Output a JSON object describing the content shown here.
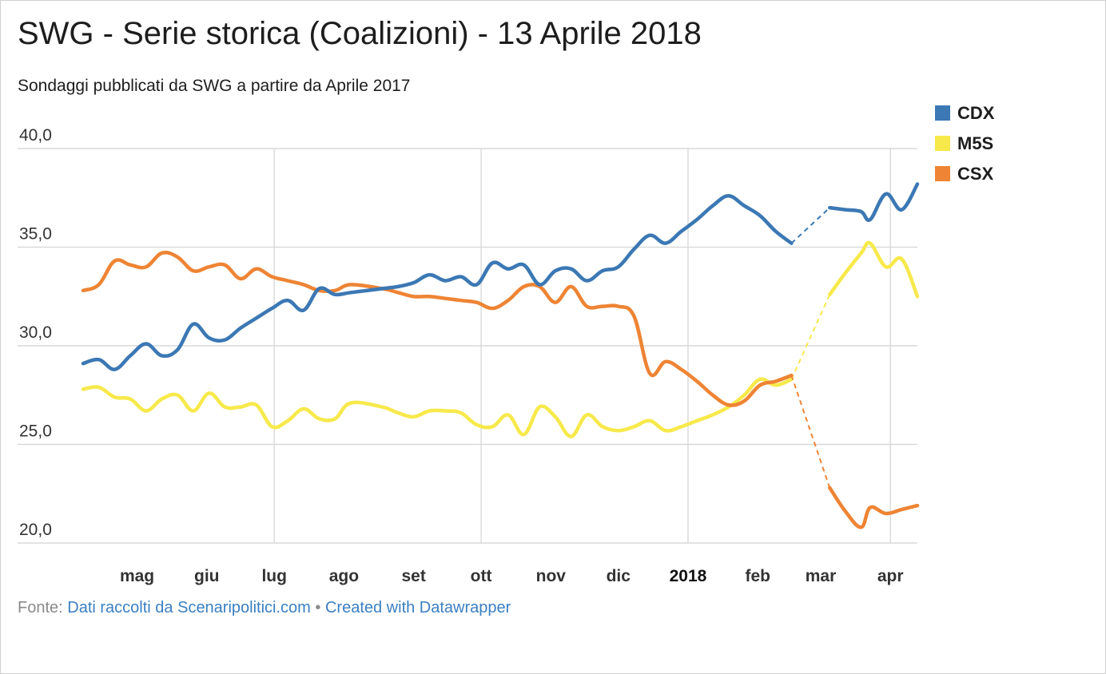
{
  "title": "SWG - Serie storica (Coalizioni) - 13 Aprile 2018",
  "subtitle": "Sondaggi pubblicati da SWG a partire da Aprile 2017",
  "footer": {
    "source_prefix": "Fonte:",
    "source_link": "Dati raccolti da Scenaripolitici.com",
    "separator": "•",
    "credit_link": "Created with Datawrapper"
  },
  "colors": {
    "CDX": "#3b78b4",
    "M5S": "#f7e94a",
    "CSX": "#ee8434",
    "grid": "#d9d9d9"
  },
  "chart_data": {
    "type": "line",
    "title": "SWG - Serie storica (Coalizioni) - 13 Aprile 2018",
    "subtitle": "Sondaggi pubblicati da SWG a partire da Aprile 2017",
    "x_start": "2017-04-07",
    "x_end": "2018-04-13",
    "ylim": [
      20,
      40
    ],
    "yticks": [
      20,
      25,
      30,
      35,
      40
    ],
    "ytick_labels": [
      "20,0",
      "25,0",
      "30,0",
      "35,0",
      "40,0"
    ],
    "xticks": [
      {
        "label": "mag",
        "date": "2017-05-01",
        "bold": false
      },
      {
        "label": "giu",
        "date": "2017-06-01",
        "bold": false
      },
      {
        "label": "lug",
        "date": "2017-07-01",
        "bold": false
      },
      {
        "label": "ago",
        "date": "2017-08-01",
        "bold": false
      },
      {
        "label": "set",
        "date": "2017-09-01",
        "bold": false
      },
      {
        "label": "ott",
        "date": "2017-10-01",
        "bold": false
      },
      {
        "label": "nov",
        "date": "2017-11-01",
        "bold": false
      },
      {
        "label": "dic",
        "date": "2017-12-01",
        "bold": false
      },
      {
        "label": "2018",
        "date": "2018-01-01",
        "bold": true
      },
      {
        "label": "feb",
        "date": "2018-02-01",
        "bold": false
      },
      {
        "label": "mar",
        "date": "2018-03-01",
        "bold": false
      },
      {
        "label": "apr",
        "date": "2018-04-01",
        "bold": false
      }
    ],
    "grid_x_dates": [
      "2017-07-01",
      "2017-10-01",
      "2018-01-01",
      "2018-04-01"
    ],
    "legend_position": "top-right",
    "gap": {
      "from": "2018-02-16",
      "to": "2018-03-05"
    },
    "series": [
      {
        "name": "CDX",
        "points": [
          [
            "2017-04-07",
            29.1
          ],
          [
            "2017-04-14",
            29.3
          ],
          [
            "2017-04-21",
            28.8
          ],
          [
            "2017-04-28",
            29.5
          ],
          [
            "2017-05-05",
            30.1
          ],
          [
            "2017-05-12",
            29.5
          ],
          [
            "2017-05-19",
            29.8
          ],
          [
            "2017-05-26",
            31.1
          ],
          [
            "2017-06-02",
            30.4
          ],
          [
            "2017-06-09",
            30.3
          ],
          [
            "2017-06-16",
            30.9
          ],
          [
            "2017-06-23",
            31.4
          ],
          [
            "2017-06-30",
            31.9
          ],
          [
            "2017-07-07",
            32.3
          ],
          [
            "2017-07-14",
            31.8
          ],
          [
            "2017-07-21",
            32.9
          ],
          [
            "2017-07-28",
            32.6
          ],
          [
            "2017-08-04",
            32.7
          ],
          [
            "2017-08-18",
            32.9
          ],
          [
            "2017-08-25",
            33.0
          ],
          [
            "2017-09-01",
            33.2
          ],
          [
            "2017-09-08",
            33.6
          ],
          [
            "2017-09-15",
            33.3
          ],
          [
            "2017-09-22",
            33.5
          ],
          [
            "2017-09-29",
            33.1
          ],
          [
            "2017-10-06",
            34.2
          ],
          [
            "2017-10-13",
            33.9
          ],
          [
            "2017-10-20",
            34.1
          ],
          [
            "2017-10-27",
            33.1
          ],
          [
            "2017-11-03",
            33.8
          ],
          [
            "2017-11-10",
            33.9
          ],
          [
            "2017-11-17",
            33.3
          ],
          [
            "2017-11-24",
            33.8
          ],
          [
            "2017-12-01",
            34.0
          ],
          [
            "2017-12-08",
            34.9
          ],
          [
            "2017-12-15",
            35.6
          ],
          [
            "2017-12-22",
            35.2
          ],
          [
            "2017-12-29",
            35.8
          ],
          [
            "2018-01-05",
            36.4
          ],
          [
            "2018-01-12",
            37.1
          ],
          [
            "2018-01-19",
            37.6
          ],
          [
            "2018-01-26",
            37.1
          ],
          [
            "2018-02-02",
            36.6
          ],
          [
            "2018-02-09",
            35.8
          ],
          [
            "2018-02-16",
            35.2
          ],
          [
            "2018-03-05",
            37.0
          ],
          [
            "2018-03-12",
            36.9
          ],
          [
            "2018-03-19",
            36.8
          ],
          [
            "2018-03-23",
            36.4
          ],
          [
            "2018-03-30",
            37.7
          ],
          [
            "2018-04-06",
            36.9
          ],
          [
            "2018-04-13",
            38.2
          ]
        ]
      },
      {
        "name": "M5S",
        "points": [
          [
            "2017-04-07",
            27.8
          ],
          [
            "2017-04-14",
            27.9
          ],
          [
            "2017-04-21",
            27.4
          ],
          [
            "2017-04-28",
            27.3
          ],
          [
            "2017-05-05",
            26.7
          ],
          [
            "2017-05-12",
            27.3
          ],
          [
            "2017-05-19",
            27.5
          ],
          [
            "2017-05-26",
            26.7
          ],
          [
            "2017-06-02",
            27.6
          ],
          [
            "2017-06-09",
            26.9
          ],
          [
            "2017-06-16",
            26.9
          ],
          [
            "2017-06-23",
            27.0
          ],
          [
            "2017-06-30",
            25.9
          ],
          [
            "2017-07-07",
            26.2
          ],
          [
            "2017-07-14",
            26.8
          ],
          [
            "2017-07-21",
            26.3
          ],
          [
            "2017-07-28",
            26.3
          ],
          [
            "2017-08-04",
            27.1
          ],
          [
            "2017-08-18",
            26.9
          ],
          [
            "2017-08-25",
            26.6
          ],
          [
            "2017-09-01",
            26.4
          ],
          [
            "2017-09-08",
            26.7
          ],
          [
            "2017-09-15",
            26.7
          ],
          [
            "2017-09-22",
            26.6
          ],
          [
            "2017-09-29",
            26.0
          ],
          [
            "2017-10-06",
            25.9
          ],
          [
            "2017-10-13",
            26.5
          ],
          [
            "2017-10-20",
            25.5
          ],
          [
            "2017-10-27",
            26.9
          ],
          [
            "2017-11-03",
            26.4
          ],
          [
            "2017-11-10",
            25.4
          ],
          [
            "2017-11-17",
            26.5
          ],
          [
            "2017-11-24",
            25.9
          ],
          [
            "2017-12-01",
            25.7
          ],
          [
            "2017-12-08",
            25.9
          ],
          [
            "2017-12-15",
            26.2
          ],
          [
            "2017-12-22",
            25.7
          ],
          [
            "2017-12-29",
            25.9
          ],
          [
            "2018-01-05",
            26.2
          ],
          [
            "2018-01-12",
            26.5
          ],
          [
            "2018-01-19",
            26.9
          ],
          [
            "2018-01-26",
            27.5
          ],
          [
            "2018-02-02",
            28.3
          ],
          [
            "2018-02-09",
            28.0
          ],
          [
            "2018-02-16",
            28.3
          ],
          [
            "2018-03-05",
            32.6
          ],
          [
            "2018-03-12",
            33.7
          ],
          [
            "2018-03-19",
            34.7
          ],
          [
            "2018-03-23",
            35.2
          ],
          [
            "2018-03-30",
            34.0
          ],
          [
            "2018-04-06",
            34.4
          ],
          [
            "2018-04-13",
            32.5
          ]
        ]
      },
      {
        "name": "CSX",
        "points": [
          [
            "2017-04-07",
            32.8
          ],
          [
            "2017-04-14",
            33.1
          ],
          [
            "2017-04-21",
            34.3
          ],
          [
            "2017-04-28",
            34.1
          ],
          [
            "2017-05-05",
            34.0
          ],
          [
            "2017-05-12",
            34.7
          ],
          [
            "2017-05-19",
            34.5
          ],
          [
            "2017-05-26",
            33.8
          ],
          [
            "2017-06-02",
            34.0
          ],
          [
            "2017-06-09",
            34.1
          ],
          [
            "2017-06-16",
            33.4
          ],
          [
            "2017-06-23",
            33.9
          ],
          [
            "2017-06-30",
            33.5
          ],
          [
            "2017-07-07",
            33.3
          ],
          [
            "2017-07-14",
            33.1
          ],
          [
            "2017-07-21",
            32.8
          ],
          [
            "2017-07-28",
            32.8
          ],
          [
            "2017-08-04",
            33.1
          ],
          [
            "2017-08-18",
            32.9
          ],
          [
            "2017-08-25",
            32.7
          ],
          [
            "2017-09-01",
            32.5
          ],
          [
            "2017-09-08",
            32.5
          ],
          [
            "2017-09-15",
            32.4
          ],
          [
            "2017-09-22",
            32.3
          ],
          [
            "2017-09-29",
            32.2
          ],
          [
            "2017-10-06",
            31.9
          ],
          [
            "2017-10-13",
            32.3
          ],
          [
            "2017-10-20",
            33.0
          ],
          [
            "2017-10-27",
            33.0
          ],
          [
            "2017-11-03",
            32.2
          ],
          [
            "2017-11-10",
            33.0
          ],
          [
            "2017-11-17",
            32.0
          ],
          [
            "2017-11-24",
            32.0
          ],
          [
            "2017-12-01",
            32.0
          ],
          [
            "2017-12-08",
            31.5
          ],
          [
            "2017-12-15",
            28.6
          ],
          [
            "2017-12-22",
            29.2
          ],
          [
            "2017-12-29",
            28.8
          ],
          [
            "2018-01-05",
            28.2
          ],
          [
            "2018-01-12",
            27.5
          ],
          [
            "2018-01-19",
            27.0
          ],
          [
            "2018-01-26",
            27.2
          ],
          [
            "2018-02-02",
            28.0
          ],
          [
            "2018-02-09",
            28.2
          ],
          [
            "2018-02-16",
            28.5
          ],
          [
            "2018-03-05",
            22.8
          ],
          [
            "2018-03-12",
            21.6
          ],
          [
            "2018-03-19",
            20.8
          ],
          [
            "2018-03-23",
            21.8
          ],
          [
            "2018-03-30",
            21.5
          ],
          [
            "2018-04-06",
            21.7
          ],
          [
            "2018-04-13",
            21.9
          ]
        ]
      }
    ]
  }
}
